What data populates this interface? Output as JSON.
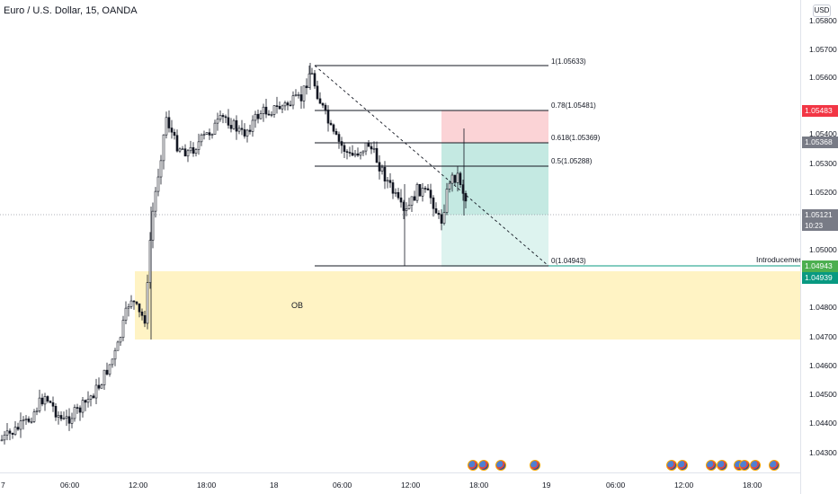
{
  "header": {
    "symbol_title": "Euro / U.S. Dollar, 15, OANDA",
    "currency": "USD"
  },
  "price_axis": {
    "ticks": [
      "1.05800",
      "1.05700",
      "1.05600",
      "1.05400",
      "1.05300",
      "1.05200",
      "1.05000",
      "1.04800",
      "1.04700",
      "1.04600",
      "1.04500",
      "1.04400",
      "1.04300"
    ],
    "tags": {
      "red": {
        "label": "1.05483",
        "color": "#f23645"
      },
      "gray_fib": {
        "label": "1.05368",
        "color": "#787b86"
      },
      "current": {
        "label": "1.05121",
        "countdown": "10:23",
        "color": "#787b86"
      },
      "green_top": {
        "label": "1.04943",
        "color": "#4caf50"
      },
      "green_bottom": {
        "label": "1.04939",
        "color": "#089981"
      }
    }
  },
  "time_axis": {
    "ticks": [
      "7",
      "06:00",
      "12:00",
      "18:00",
      "18",
      "06:00",
      "12:00",
      "18:00",
      "19",
      "06:00",
      "12:00",
      "18:00"
    ]
  },
  "drawings": {
    "ob_label": "OB",
    "introducement_label": "Introducement",
    "fib_levels": [
      {
        "label": "1(1.05633)"
      },
      {
        "label": "0.78(1.05481)"
      },
      {
        "label": "0.618(1.05369)"
      },
      {
        "label": "0.5(1.05288)"
      },
      {
        "label": "0(1.04943)"
      }
    ]
  },
  "colors": {
    "up_candle": "#131722",
    "ob_zone": "#fff3c4",
    "stop_zone": "#fbd3d6",
    "profit_zone_dark": "#9ad8cc",
    "profit_zone_light": "#d2efe9"
  },
  "events": {
    "icon": "eu-us-flag-icon",
    "count": 13
  }
}
